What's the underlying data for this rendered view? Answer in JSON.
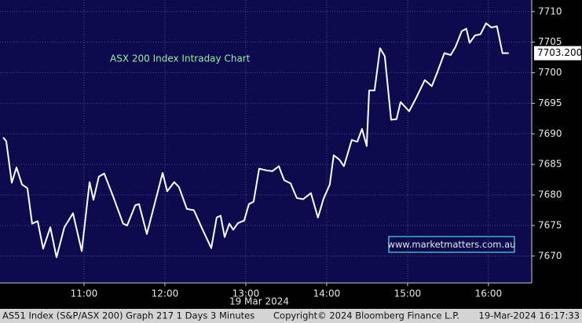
{
  "chart_data": {
    "type": "line",
    "title": "ASX 200 Index Intraday Chart",
    "annotation": "www.marketmatters.com.au",
    "date_label": "19 Mar 2024",
    "footer": {
      "left": "AS51 Index (S&P/ASX 200) Graph 217 1 Days 3 Minutes",
      "center": "Copyright© 2024 Bloomberg Finance L.P.",
      "right": "19-Mar-2024 16:17:33"
    },
    "x": [
      0,
      2.3,
      6.4,
      9.9,
      14,
      18,
      21.5,
      25.6,
      29.7,
      35,
      39.6,
      45.4,
      51.8,
      58.3,
      64.1,
      67,
      71,
      75,
      81.5,
      89,
      92,
      98,
      100.8,
      106.6,
      118.3,
      121.7,
      126.9,
      130.4,
      136.3,
      141.5,
      148,
      154.4,
      158.4,
      161.3,
      164.3,
      167.8,
      170.7,
      174.2,
      178.8,
      182.3,
      185.8,
      189.9,
      195.7,
      199.8,
      204.5,
      208.5,
      213.2,
      217.8,
      222.5,
      228.3,
      233.5,
      237.7,
      242.3,
      245.2,
      249.3,
      252.8,
      258.6,
      262.7,
      266.2,
      269.7,
      271.5,
      275.5,
      279.6,
      283.1,
      287.8,
      291.8,
      294.8,
      301.2,
      306.4,
      312.8,
      318,
      322.1,
      327.3,
      332,
      335.5,
      340.2,
      343.6,
      346,
      350,
      354.1,
      358.2,
      362.2,
      366.3,
      370.4,
      375
    ],
    "series": [
      {
        "name": "AS51 Index",
        "color": "#ffffff",
        "values": [
          7689.4,
          7688.8,
          7682.0,
          7684.5,
          7681.7,
          7681.1,
          7675.3,
          7675.7,
          7671.2,
          7674.7,
          7669.8,
          7674.7,
          7677.0,
          7670.8,
          7682.1,
          7679.2,
          7683.0,
          7683.5,
          7679.8,
          7675.3,
          7675.0,
          7678.3,
          7678.5,
          7673.6,
          7683.6,
          7680.6,
          7682.1,
          7681.3,
          7677.7,
          7677.5,
          7674.3,
          7671.3,
          7676.3,
          7676.6,
          7673.1,
          7675.3,
          7674.3,
          7675.4,
          7675.8,
          7678.5,
          7678.9,
          7684.3,
          7684.0,
          7683.9,
          7684.7,
          7682.4,
          7681.9,
          7679.5,
          7679.3,
          7680.3,
          7676.3,
          7679.4,
          7681.7,
          7686.5,
          7685.8,
          7684.7,
          7689.0,
          7688.7,
          7690.8,
          7688.0,
          7697.1,
          7697.1,
          7704.0,
          7702.7,
          7692.3,
          7692.4,
          7695.2,
          7693.7,
          7695.9,
          7698.8,
          7697.8,
          7700.1,
          7703.2,
          7702.9,
          7704.2,
          7706.8,
          7707.2,
          7704.9,
          7706.1,
          7706.3,
          7708.1,
          7707.4,
          7707.6,
          7703.2,
          7703.2
        ],
        "last_value_label": "7703.200"
      }
    ],
    "xlim": [
      -2.33,
      392.1
    ],
    "xticks": [
      {
        "value": 60,
        "label": "11:00"
      },
      {
        "value": 120,
        "label": "12:00"
      },
      {
        "value": 180,
        "label": "13:00"
      },
      {
        "value": 240,
        "label": "14:00"
      },
      {
        "value": 300,
        "label": "15:00"
      },
      {
        "value": 360,
        "label": "16:00"
      }
    ],
    "ylim": [
      7665.6,
      7711.9
    ],
    "yticks": [
      7670,
      7675,
      7680,
      7685,
      7690,
      7695,
      7700,
      7705,
      7710
    ],
    "grid": true
  }
}
